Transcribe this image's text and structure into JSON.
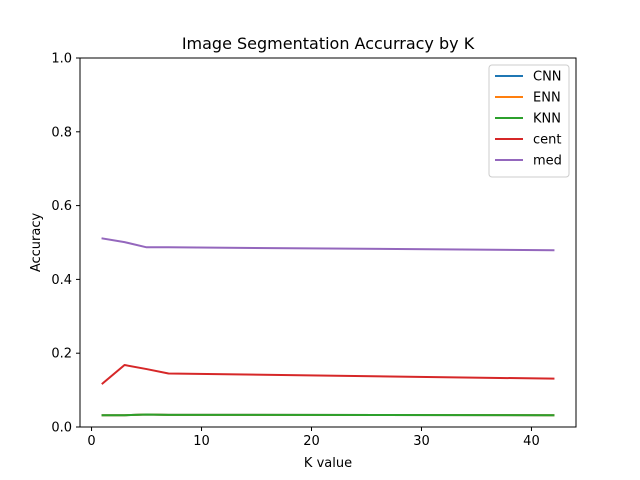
{
  "chart_data": {
    "type": "line",
    "title": "Image Segmentation Accurracy by K",
    "xlabel": "K value",
    "ylabel": "Accuracy",
    "xlim": [
      -1.05,
      44.05
    ],
    "ylim": [
      0,
      1.0
    ],
    "xticks": [
      0,
      10,
      20,
      30,
      40
    ],
    "yticks": [
      0.0,
      0.2,
      0.4,
      0.6,
      0.8,
      1.0
    ],
    "xtick_labels": [
      "0",
      "10",
      "20",
      "30",
      "40"
    ],
    "ytick_labels": [
      "0.0",
      "0.2",
      "0.4",
      "0.6",
      "0.8",
      "1.0"
    ],
    "grid": false,
    "legend_position": "top-right",
    "series": [
      {
        "name": "CNN",
        "color": "#1f77b4",
        "x": [
          1,
          3,
          5,
          7,
          42
        ],
        "y": [
          0.032,
          0.032,
          0.034,
          0.033,
          0.032
        ]
      },
      {
        "name": "ENN",
        "color": "#ff7f0e",
        "x": [
          1,
          3,
          5,
          7,
          42
        ],
        "y": [
          0.032,
          0.032,
          0.034,
          0.033,
          0.032
        ]
      },
      {
        "name": "KNN",
        "color": "#2ca02c",
        "x": [
          1,
          3,
          5,
          7,
          42
        ],
        "y": [
          0.032,
          0.032,
          0.034,
          0.033,
          0.032
        ]
      },
      {
        "name": "cent",
        "color": "#d62728",
        "x": [
          1,
          3,
          5,
          7,
          42
        ],
        "y": [
          0.118,
          0.168,
          0.157,
          0.145,
          0.131
        ]
      },
      {
        "name": "med",
        "color": "#9467bd",
        "x": [
          1,
          3,
          5,
          7,
          42
        ],
        "y": [
          0.511,
          0.501,
          0.487,
          0.487,
          0.479
        ]
      }
    ]
  }
}
